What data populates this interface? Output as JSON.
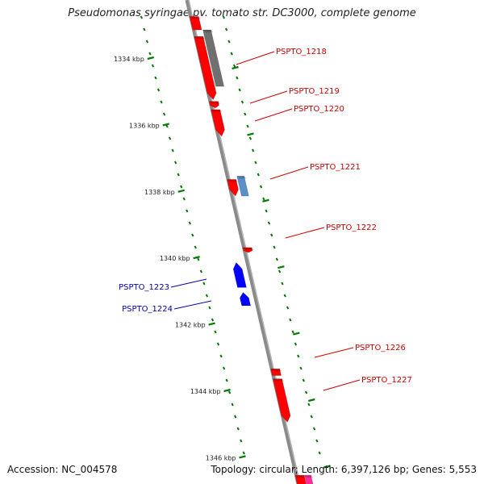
{
  "title": "Pseudomonas syringae pv. tomato str. DC3000, complete genome",
  "footer": {
    "accession": "Accession: NC_004578",
    "stats": "Topology: circular; Length: 6,397,126 bp; Genes: 5,553"
  },
  "colors": {
    "forward_gene": "#ff0000",
    "reverse_gene": "#0000ff",
    "rna_gene": "#5a8fc8",
    "pseudogene": "#707070",
    "backbone": "#8a8a8a",
    "tick": "#007a00",
    "forward_label": "#cc0000",
    "reverse_label": "#0000aa",
    "other_feature": "#ff2a9c"
  },
  "kbp_ticks": [
    "1334 kbp",
    "1336 kbp",
    "1338 kbp",
    "1340 kbp",
    "1342 kbp",
    "1344 kbp",
    "1346 kbp"
  ],
  "genes": [
    {
      "id": "g-top",
      "label": "",
      "strand": "forward",
      "kind": "cds",
      "start": 1332.8,
      "end": 1333.2,
      "arrow": false
    },
    {
      "id": "PSPTO_1218",
      "label": "PSPTO_1218",
      "strand": "forward",
      "kind": "cds",
      "start": 1333.4,
      "end": 1335.3,
      "arrow": true
    },
    {
      "id": "PSPTO_1218b",
      "label": "",
      "strand": "forward",
      "kind": "pseudo",
      "start": 1333.2,
      "end": 1334.9,
      "arrow": false
    },
    {
      "id": "PSPTO_1219",
      "label": "PSPTO_1219",
      "strand": "forward",
      "kind": "cds",
      "start": 1335.35,
      "end": 1335.55,
      "arrow": true
    },
    {
      "id": "PSPTO_1220",
      "label": "PSPTO_1220",
      "strand": "forward",
      "kind": "cds",
      "start": 1335.6,
      "end": 1336.4,
      "arrow": true
    },
    {
      "id": "PSPTO_1221",
      "label": "PSPTO_1221",
      "strand": "forward",
      "kind": "cds",
      "start": 1337.7,
      "end": 1338.2,
      "arrow": true
    },
    {
      "id": "PSPTO_1221r",
      "label": "",
      "strand": "forward",
      "kind": "rna",
      "start": 1337.6,
      "end": 1338.2,
      "arrow": false
    },
    {
      "id": "PSPTO_1222",
      "label": "PSPTO_1222",
      "strand": "forward",
      "kind": "cds",
      "start": 1339.75,
      "end": 1339.9,
      "arrow": true
    },
    {
      "id": "PSPTO_1223",
      "label": "PSPTO_1223",
      "strand": "reverse",
      "kind": "cds",
      "start": 1340.2,
      "end": 1340.95,
      "arrow": true
    },
    {
      "id": "PSPTO_1224",
      "label": "PSPTO_1224",
      "strand": "reverse",
      "kind": "cds",
      "start": 1341.1,
      "end": 1341.5,
      "arrow": true
    },
    {
      "id": "PSPTO_1226",
      "label": "PSPTO_1226",
      "strand": "forward",
      "kind": "cds",
      "start": 1343.4,
      "end": 1343.6,
      "arrow": false
    },
    {
      "id": "PSPTO_1227",
      "label": "PSPTO_1227",
      "strand": "forward",
      "kind": "cds",
      "start": 1343.7,
      "end": 1345.0,
      "arrow": true
    },
    {
      "id": "g-bottom",
      "label": "",
      "strand": "forward",
      "kind": "cds",
      "start": 1346.6,
      "end": 1347.0,
      "arrow": false
    },
    {
      "id": "g-bottom-pink",
      "label": "",
      "strand": "forward",
      "kind": "other",
      "start": 1346.6,
      "end": 1347.0,
      "arrow": false
    }
  ]
}
